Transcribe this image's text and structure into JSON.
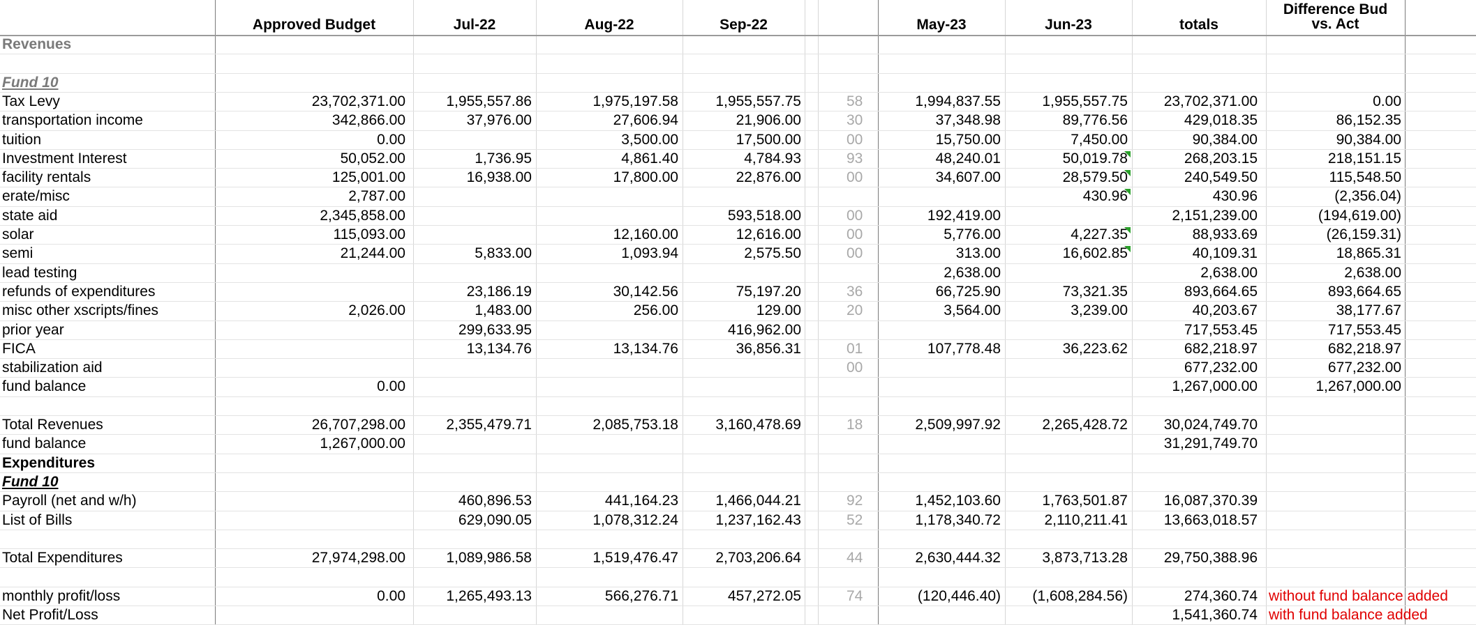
{
  "headers": {
    "budget": "Approved Budget",
    "jul": "Jul-22",
    "aug": "Aug-22",
    "sep": "Sep-22",
    "may": "May-23",
    "jun": "Jun-23",
    "totals": "totals",
    "diff_line1": "Difference Bud",
    "diff_line2": "vs. Act"
  },
  "colors": {
    "section_gray": "#7a7a7a",
    "note_red": "#e00000",
    "comment_marker_green": "#2aa02a"
  },
  "rows": [
    {
      "label": "Revenues",
      "style": "section",
      "budget": "",
      "jul": "",
      "aug": "",
      "sep": "",
      "trunc": "",
      "may": "",
      "jun": "",
      "totals": "",
      "diff": "",
      "note": ""
    },
    {
      "label": "",
      "style": "",
      "budget": "",
      "jul": "",
      "aug": "",
      "sep": "",
      "trunc": "",
      "may": "",
      "jun": "",
      "totals": "",
      "diff": "",
      "note": ""
    },
    {
      "label": "Fund 10",
      "style": "fund-gray",
      "budget": "",
      "jul": "",
      "aug": "",
      "sep": "",
      "trunc": "",
      "may": "",
      "jun": "",
      "totals": "",
      "diff": "",
      "note": ""
    },
    {
      "label": "Tax Levy",
      "style": "",
      "budget": "23,702,371.00",
      "jul": "1,955,557.86",
      "aug": "1,975,197.58",
      "sep": "1,955,557.75",
      "trunc": "58",
      "may": "1,994,837.55",
      "jun": "1,955,557.75",
      "totals": "23,702,371.00",
      "diff": "0.00",
      "note": ""
    },
    {
      "label": "transportation income",
      "style": "",
      "budget": "342,866.00",
      "jul": "37,976.00",
      "aug": "27,606.94",
      "sep": "21,906.00",
      "trunc": "30",
      "may": "37,348.98",
      "jun": "89,776.56",
      "totals": "429,018.35",
      "diff": "86,152.35",
      "note": ""
    },
    {
      "label": "tuition",
      "style": "",
      "budget": "0.00",
      "jul": "",
      "aug": "3,500.00",
      "sep": "17,500.00",
      "trunc": "00",
      "may": "15,750.00",
      "jun": "7,450.00",
      "totals": "90,384.00",
      "diff": "90,384.00",
      "note": ""
    },
    {
      "label": "Investment Interest",
      "style": "",
      "budget": "50,052.00",
      "jul": "1,736.95",
      "aug": "4,861.40",
      "sep": "4,784.93",
      "trunc": "93",
      "may": "48,240.01",
      "jun": "50,019.78",
      "totals": "268,203.15",
      "diff": "218,151.15",
      "note": "",
      "marker": true
    },
    {
      "label": "facility rentals",
      "style": "",
      "budget": "125,001.00",
      "jul": "16,938.00",
      "aug": "17,800.00",
      "sep": "22,876.00",
      "trunc": "00",
      "may": "34,607.00",
      "jun": "28,579.50",
      "totals": "240,549.50",
      "diff": "115,548.50",
      "note": "",
      "marker": true
    },
    {
      "label": "erate/misc",
      "style": "",
      "budget": "2,787.00",
      "jul": "",
      "aug": "",
      "sep": "",
      "trunc": "",
      "may": "",
      "jun": "430.96",
      "totals": "430.96",
      "diff": "(2,356.04)",
      "note": "",
      "marker": true
    },
    {
      "label": "state aid",
      "style": "",
      "budget": "2,345,858.00",
      "jul": "",
      "aug": "",
      "sep": "593,518.00",
      "trunc": "00",
      "may": "192,419.00",
      "jun": "",
      "totals": "2,151,239.00",
      "diff": "(194,619.00)",
      "note": ""
    },
    {
      "label": "solar",
      "style": "",
      "budget": "115,093.00",
      "jul": "",
      "aug": "12,160.00",
      "sep": "12,616.00",
      "trunc": "00",
      "may": "5,776.00",
      "jun": "4,227.35",
      "totals": "88,933.69",
      "diff": "(26,159.31)",
      "note": "",
      "marker": true
    },
    {
      "label": "semi",
      "style": "",
      "budget": "21,244.00",
      "jul": "5,833.00",
      "aug": "1,093.94",
      "sep": "2,575.50",
      "trunc": "00",
      "may": "313.00",
      "jun": "16,602.85",
      "totals": "40,109.31",
      "diff": "18,865.31",
      "note": "",
      "marker": true
    },
    {
      "label": "lead testing",
      "style": "",
      "budget": "",
      "jul": "",
      "aug": "",
      "sep": "",
      "trunc": "",
      "may": "2,638.00",
      "jun": "",
      "totals": "2,638.00",
      "diff": "2,638.00",
      "note": ""
    },
    {
      "label": "refunds of expenditures",
      "style": "",
      "budget": "",
      "jul": "23,186.19",
      "aug": "30,142.56",
      "sep": "75,197.20",
      "trunc": "36",
      "may": "66,725.90",
      "jun": "73,321.35",
      "totals": "893,664.65",
      "diff": "893,664.65",
      "note": ""
    },
    {
      "label": "misc other xscripts/fines",
      "style": "",
      "budget": "2,026.00",
      "jul": "1,483.00",
      "aug": "256.00",
      "sep": "129.00",
      "trunc": "20",
      "may": "3,564.00",
      "jun": "3,239.00",
      "totals": "40,203.67",
      "diff": "38,177.67",
      "note": ""
    },
    {
      "label": "prior year",
      "style": "",
      "budget": "",
      "jul": "299,633.95",
      "aug": "",
      "sep": "416,962.00",
      "trunc": "",
      "may": "",
      "jun": "",
      "totals": "717,553.45",
      "diff": "717,553.45",
      "note": ""
    },
    {
      "label": "FICA",
      "style": "",
      "budget": "",
      "jul": "13,134.76",
      "aug": "13,134.76",
      "sep": "36,856.31",
      "trunc": "01",
      "may": "107,778.48",
      "jun": "36,223.62",
      "totals": "682,218.97",
      "diff": "682,218.97",
      "note": ""
    },
    {
      "label": "stabilization aid",
      "style": "",
      "budget": "",
      "jul": "",
      "aug": "",
      "sep": "",
      "trunc": "00",
      "may": "",
      "jun": "",
      "totals": "677,232.00",
      "diff": "677,232.00",
      "note": ""
    },
    {
      "label": "fund balance",
      "style": "",
      "budget": "0.00",
      "jul": "",
      "aug": "",
      "sep": "",
      "trunc": "",
      "may": "",
      "jun": "",
      "totals": "1,267,000.00",
      "diff": "1,267,000.00",
      "note": ""
    },
    {
      "label": "",
      "style": "",
      "budget": "",
      "jul": "",
      "aug": "",
      "sep": "",
      "trunc": "",
      "may": "",
      "jun": "",
      "totals": "",
      "diff": "",
      "note": ""
    },
    {
      "label": "Total Revenues",
      "style": "",
      "budget": "26,707,298.00",
      "jul": "2,355,479.71",
      "aug": "2,085,753.18",
      "sep": "3,160,478.69",
      "trunc": "18",
      "may": "2,509,997.92",
      "jun": "2,265,428.72",
      "totals": "30,024,749.70",
      "diff": "",
      "note": ""
    },
    {
      "label": "fund balance",
      "style": "",
      "budget": "1,267,000.00",
      "jul": "",
      "aug": "",
      "sep": "",
      "trunc": "",
      "may": "",
      "jun": "",
      "totals": "31,291,749.70",
      "diff": "",
      "note": ""
    },
    {
      "label": "Expenditures",
      "style": "bold",
      "budget": "",
      "jul": "",
      "aug": "",
      "sep": "",
      "trunc": "",
      "may": "",
      "jun": "",
      "totals": "",
      "diff": "",
      "note": ""
    },
    {
      "label": "Fund 10",
      "style": "fund-dark",
      "budget": "",
      "jul": "",
      "aug": "",
      "sep": "",
      "trunc": "",
      "may": "",
      "jun": "",
      "totals": "",
      "diff": "",
      "note": ""
    },
    {
      "label": "Payroll (net and w/h)",
      "style": "",
      "budget": "",
      "jul": "460,896.53",
      "aug": "441,164.23",
      "sep": "1,466,044.21",
      "trunc": "92",
      "may": "1,452,103.60",
      "jun": "1,763,501.87",
      "totals": "16,087,370.39",
      "diff": "",
      "note": ""
    },
    {
      "label": "List of Bills",
      "style": "",
      "budget": "",
      "jul": "629,090.05",
      "aug": "1,078,312.24",
      "sep": "1,237,162.43",
      "trunc": "52",
      "may": "1,178,340.72",
      "jun": "2,110,211.41",
      "totals": "13,663,018.57",
      "diff": "",
      "note": ""
    },
    {
      "label": "",
      "style": "",
      "budget": "",
      "jul": "",
      "aug": "",
      "sep": "",
      "trunc": "",
      "may": "",
      "jun": "",
      "totals": "",
      "diff": "",
      "note": ""
    },
    {
      "label": "Total Expenditures",
      "style": "",
      "budget": "27,974,298.00",
      "jul": "1,089,986.58",
      "aug": "1,519,476.47",
      "sep": "2,703,206.64",
      "trunc": "44",
      "may": "2,630,444.32",
      "jun": "3,873,713.28",
      "totals": "29,750,388.96",
      "diff": "",
      "note": ""
    },
    {
      "label": "",
      "style": "",
      "budget": "",
      "jul": "",
      "aug": "",
      "sep": "",
      "trunc": "",
      "may": "",
      "jun": "",
      "totals": "",
      "diff": "",
      "note": ""
    },
    {
      "label": "monthly profit/loss",
      "style": "",
      "budget": "0.00",
      "jul": "1,265,493.13",
      "aug": "566,276.71",
      "sep": "457,272.05",
      "trunc": "74",
      "may": "(120,446.40)",
      "jun": "(1,608,284.56)",
      "totals": "274,360.74",
      "diff": "",
      "note": "without fund balance added"
    },
    {
      "label": "Net Profit/Loss",
      "style": "",
      "budget": "",
      "jul": "",
      "aug": "",
      "sep": "",
      "trunc": "",
      "may": "",
      "jun": "",
      "totals": "1,541,360.74",
      "diff": "",
      "note": "with fund balance added"
    }
  ]
}
